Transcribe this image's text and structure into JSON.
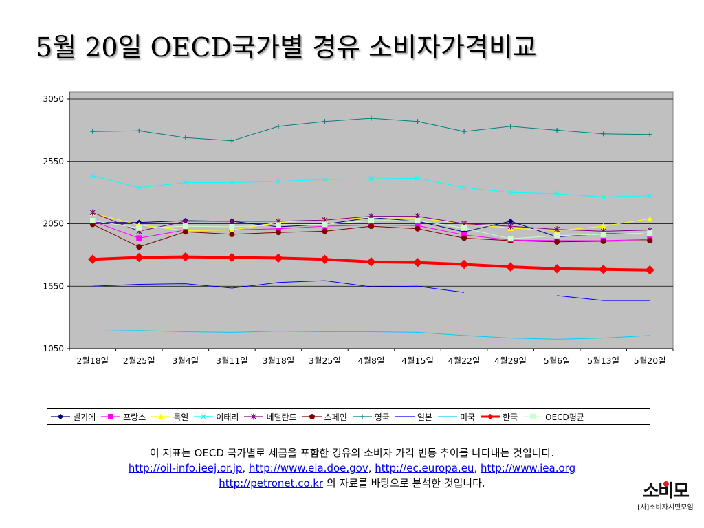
{
  "title": "5월 20일 OECD국가별 경유 소비자가격비교",
  "chart_data": {
    "type": "line",
    "categories": [
      "2월18일",
      "2월25일",
      "3월4일",
      "3월11일",
      "3월18일",
      "3월25일",
      "4월8일",
      "4월15일",
      "4월22일",
      "4월29일",
      "5월6일",
      "5월13일",
      "5월20일"
    ],
    "ylim": [
      1050,
      3050
    ],
    "yticks": [
      1050,
      1550,
      2050,
      2550,
      3050
    ],
    "grid": true,
    "legend_position": "bottom",
    "series": [
      {
        "name": "벨기에",
        "color": "#000080",
        "marker": "diamond",
        "width": 1,
        "values": [
          2060,
          2060,
          2075,
          2070,
          2025,
          2045,
          2100,
          2070,
          1985,
          2070,
          1945,
          1970,
          1970
        ]
      },
      {
        "name": "프랑스",
        "color": "#ff00ff",
        "marker": "square",
        "width": 1,
        "values": [
          2070,
          1935,
          2000,
          2000,
          2010,
          2030,
          2040,
          2035,
          1960,
          1920,
          1915,
          1915,
          1925
        ]
      },
      {
        "name": "독일",
        "color": "#ffff00",
        "marker": "triangle",
        "width": 1,
        "values": [
          2135,
          2040,
          1995,
          2000,
          2060,
          2085,
          2100,
          2095,
          2050,
          2015,
          1995,
          2030,
          2090
        ]
      },
      {
        "name": "이태리",
        "color": "#00ffff",
        "marker": "x",
        "width": 1,
        "values": [
          2435,
          2340,
          2380,
          2380,
          2390,
          2405,
          2410,
          2415,
          2340,
          2300,
          2290,
          2265,
          2275
        ]
      },
      {
        "name": "네덜란드",
        "color": "#800080",
        "marker": "asterisk",
        "width": 1,
        "values": [
          2140,
          1990,
          2070,
          2070,
          2070,
          2080,
          2110,
          2110,
          2050,
          2030,
          2005,
          1990,
          2000
        ]
      },
      {
        "name": "스페인",
        "color": "#800000",
        "marker": "circle",
        "width": 1,
        "values": [
          2045,
          1865,
          1985,
          1965,
          1980,
          1990,
          2030,
          2010,
          1935,
          1915,
          1905,
          1910,
          1915
        ]
      },
      {
        "name": "영국",
        "color": "#008080",
        "marker": "plus",
        "width": 1,
        "values": [
          2790,
          2795,
          2740,
          2715,
          2830,
          2870,
          2895,
          2870,
          2790,
          2830,
          2800,
          2770,
          2765
        ]
      },
      {
        "name": "일본",
        "color": "#0000ff",
        "marker": "none",
        "width": 1,
        "values": [
          1550,
          1565,
          1570,
          1535,
          1580,
          1595,
          1545,
          1550,
          1500,
          null,
          1475,
          1435,
          1435
        ]
      },
      {
        "name": "미국",
        "color": "#00ccff",
        "marker": "none",
        "width": 1,
        "values": [
          1190,
          1195,
          1185,
          1180,
          1190,
          1185,
          1185,
          1180,
          1155,
          1135,
          1125,
          1135,
          1155
        ]
      },
      {
        "name": "한국",
        "color": "#ff0000",
        "marker": "diamond",
        "width": 4,
        "values": [
          1765,
          1780,
          1785,
          1780,
          1775,
          1765,
          1745,
          1740,
          1725,
          1705,
          1690,
          1685,
          1680
        ]
      },
      {
        "name": "OECD평균",
        "color": "#ccffcc",
        "marker": "square",
        "width": 1,
        "values": [
          2075,
          2015,
          2030,
          2025,
          2040,
          2045,
          2075,
          2075,
          2015,
          1930,
          1955,
          1965,
          1975
        ]
      }
    ]
  },
  "legend_items": [
    "벨기에",
    "프랑스",
    "독일",
    "이태리",
    "네덜란드",
    "스페인",
    "영국",
    "일본",
    "미국",
    "한국",
    "OECD평균"
  ],
  "description": {
    "line1": "이 지표는 OECD 국가별로 세금을 포함한 경유의 소비자 가격 변동 추이를 나타내는 것입니다.",
    "links": [
      "http://oil-info.ieej.or.jp",
      "http://www.eia.doe.gov",
      "http://ec.europa.eu",
      "http://www.iea.org",
      "http://petronet.co.kr"
    ],
    "sep": ", ",
    "line3_suffix": " 의 자료를 바탕으로 분석한 것입니다."
  },
  "logo": {
    "main": "소비모",
    "sub": "[사]소비자시민모임"
  }
}
